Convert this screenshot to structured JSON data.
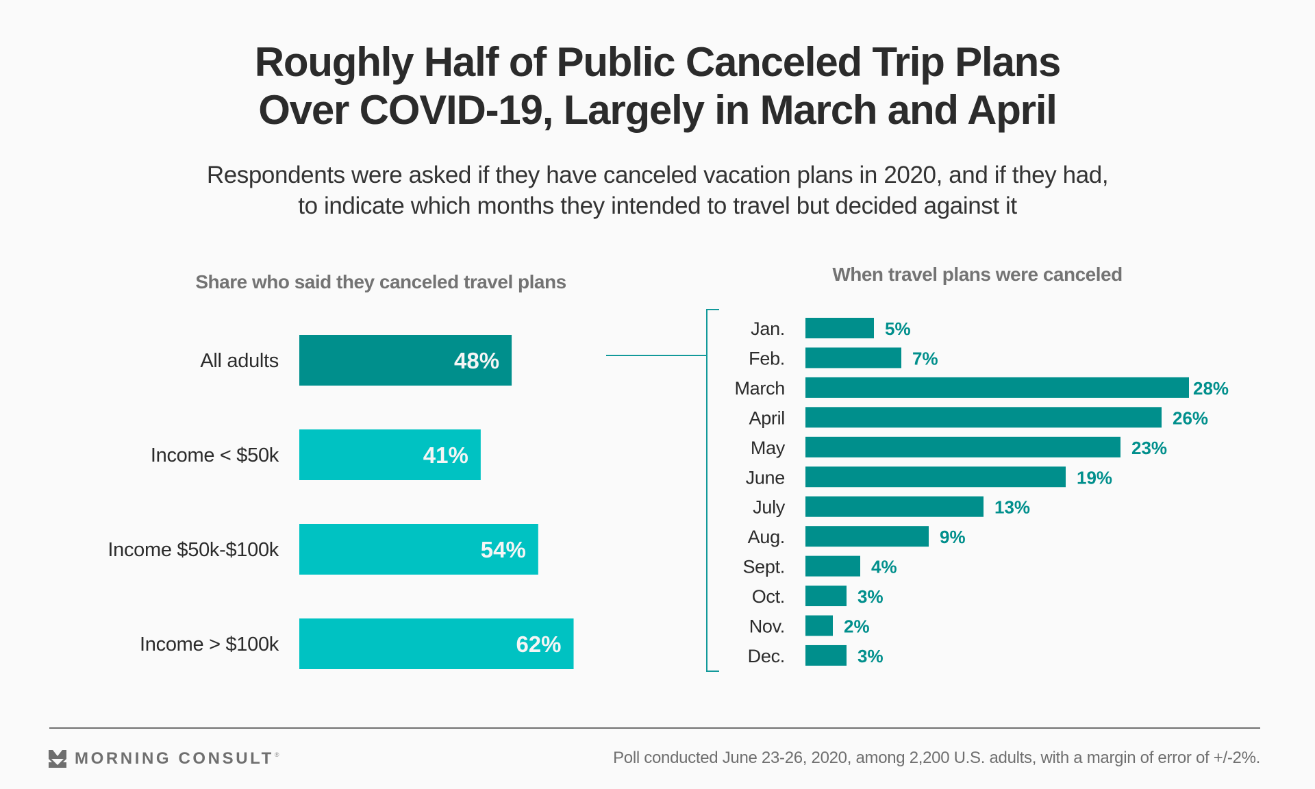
{
  "header": {
    "title_lines": [
      "Roughly Half of Public Canceled Trip Plans",
      "Over COVID-19, Largely in March and April"
    ],
    "subtitle_lines": [
      "Respondents were asked if they have canceled vacation plans in 2020, and if they had,",
      "to indicate which months they intended to travel but decided against it"
    ]
  },
  "colors": {
    "dark_teal": "#008f8c",
    "light_teal": "#00c2c2",
    "heading_gray": "#737373",
    "text": "#2b2b2b"
  },
  "chart_data": [
    {
      "type": "bar",
      "orientation": "horizontal",
      "title": "Share who said they canceled travel plans",
      "categories": [
        "All adults",
        "Income < $50k",
        "Income $50k-$100k",
        "Income > $100k"
      ],
      "values": [
        48,
        41,
        54,
        62
      ],
      "value_labels": [
        "48%",
        "41%",
        "54%",
        "62%"
      ],
      "highlight": [
        true,
        false,
        false,
        false
      ],
      "unit": "%",
      "xlim": [
        0,
        100
      ],
      "grid": false,
      "legend": "none"
    },
    {
      "type": "bar",
      "orientation": "horizontal",
      "title": "When travel plans were canceled",
      "categories": [
        "Jan.",
        "Feb.",
        "March",
        "April",
        "May",
        "June",
        "July",
        "Aug.",
        "Sept.",
        "Oct.",
        "Nov.",
        "Dec."
      ],
      "values": [
        5,
        7,
        28,
        26,
        23,
        19,
        13,
        9,
        4,
        3,
        2,
        3
      ],
      "value_labels": [
        "5%",
        "7%",
        "28%",
        "26%",
        "23%",
        "19%",
        "13%",
        "9%",
        "4%",
        "3%",
        "2%",
        "3%"
      ],
      "unit": "%",
      "xlim": [
        0,
        30
      ],
      "grid": false,
      "legend": "none",
      "annotation": "bracket linking 'All adults' bar to monthly breakdown"
    }
  ],
  "footer": {
    "brand_name": "MORNING CONSULT",
    "brand_reg": "®",
    "brand_icon": "morning-consult-chevron-icon",
    "source_note": "Poll conducted June 23-26, 2020, among 2,200 U.S. adults, with a margin of error of +/-2%."
  }
}
